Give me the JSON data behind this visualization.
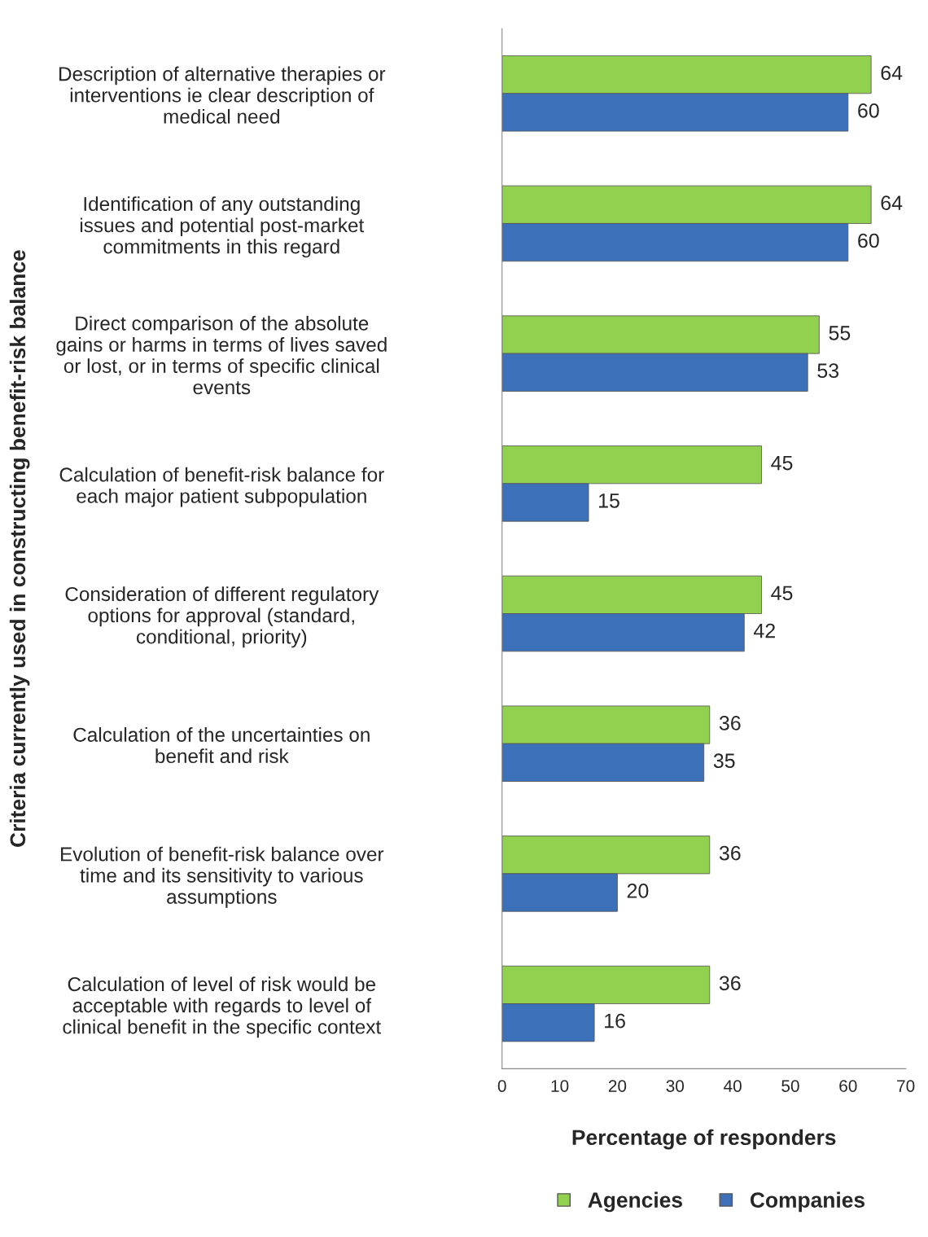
{
  "chart_data": {
    "type": "bar",
    "orientation": "horizontal",
    "ylabel": "Criteria currently used in constructing benefit-risk balance",
    "xlabel": "Percentage of responders",
    "categories": [
      "Description of alternative therapies or\ninterventions ie clear description of\nmedical need",
      "Identification of any outstanding\nissues and potential post-market\ncommitments in this regard",
      "Direct comparison of the absolute\ngains or harms in terms of lives saved\nor lost, or in terms of specific clinical\nevents",
      "Calculation of benefit-risk balance for\neach major patient subpopulation",
      "Consideration of different regulatory\noptions for approval (standard,\nconditional, priority)",
      "Calculation of the uncertainties on\nbenefit and risk",
      "Evolution of benefit-risk balance over\ntime and its sensitivity to various\nassumptions",
      "Calculation of level of risk would be\nacceptable with regards to level of\nclinical benefit in the specific context"
    ],
    "series": [
      {
        "name": "Agencies",
        "color": "#92d050",
        "values": [
          64,
          64,
          55,
          45,
          45,
          36,
          36,
          36
        ]
      },
      {
        "name": "Companies",
        "color": "#3c70b8",
        "values": [
          60,
          60,
          53,
          15,
          42,
          35,
          20,
          16
        ]
      }
    ],
    "xlim": [
      0,
      70
    ],
    "xticks": [
      0,
      10,
      20,
      30,
      40,
      50,
      60,
      70
    ],
    "data_labels": true,
    "grid": false,
    "legend": "bottom"
  }
}
